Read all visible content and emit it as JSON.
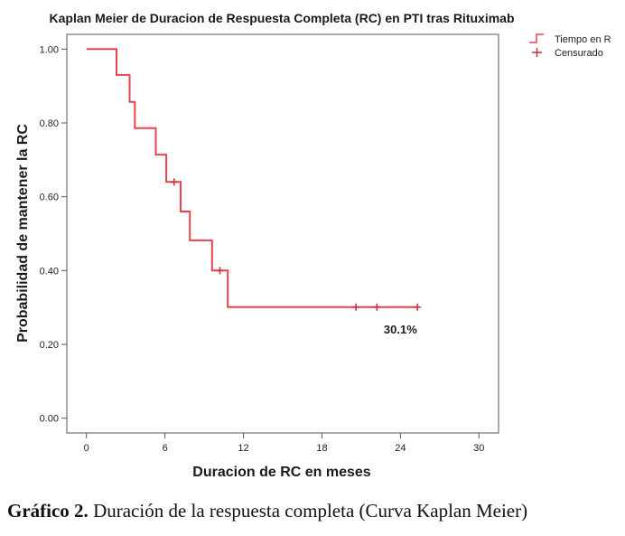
{
  "chart_data": {
    "type": "line",
    "step": true,
    "title": "Kaplan Meier de Duracion de Respuesta Completa (RC) en PTI tras Rituximab",
    "xlabel": "Duracion de RC en meses",
    "ylabel": "Probabilidad de mantener la RC",
    "xlim": [
      -1.5,
      31.5
    ],
    "ylim": [
      -0.04,
      1.04
    ],
    "xticks": [
      0,
      6,
      12,
      18,
      24,
      30
    ],
    "xtick_labels": [
      "0",
      "6",
      "12",
      "18",
      "24",
      "30"
    ],
    "yticks": [
      0.0,
      0.2,
      0.4,
      0.6,
      0.8,
      1.0
    ],
    "ytick_labels": [
      "0.00",
      "0.20",
      "0.40",
      "0.60",
      "0.80",
      "1.00"
    ],
    "grid": false,
    "legend_position": "top-right",
    "series": [
      {
        "name": "Tiempo en R",
        "color": "#e8434e",
        "points": [
          [
            0,
            1.0
          ],
          [
            2.3,
            1.0
          ],
          [
            2.3,
            0.93
          ],
          [
            3.3,
            0.93
          ],
          [
            3.3,
            0.857
          ],
          [
            3.7,
            0.857
          ],
          [
            3.7,
            0.786
          ],
          [
            5.3,
            0.786
          ],
          [
            5.3,
            0.714
          ],
          [
            6.1,
            0.714
          ],
          [
            6.1,
            0.64
          ],
          [
            7.2,
            0.64
          ],
          [
            7.2,
            0.56
          ],
          [
            7.9,
            0.56
          ],
          [
            7.9,
            0.482
          ],
          [
            9.6,
            0.482
          ],
          [
            9.6,
            0.4
          ],
          [
            10.8,
            0.4
          ],
          [
            10.8,
            0.301
          ],
          [
            25.3,
            0.301
          ]
        ]
      },
      {
        "name": "Censurado",
        "color": "#c8343e",
        "marker": "plus",
        "points": [
          [
            6.7,
            0.64
          ],
          [
            10.2,
            0.4
          ],
          [
            20.6,
            0.301
          ],
          [
            22.2,
            0.301
          ],
          [
            25.3,
            0.301
          ]
        ]
      }
    ],
    "annotations": [
      {
        "text": "30.1%",
        "x": 24.0,
        "y": 0.23
      }
    ]
  },
  "caption": {
    "bold": "Gráfico 2.",
    "text": " Duración de la respuesta completa (Curva Kaplan Meier)"
  }
}
